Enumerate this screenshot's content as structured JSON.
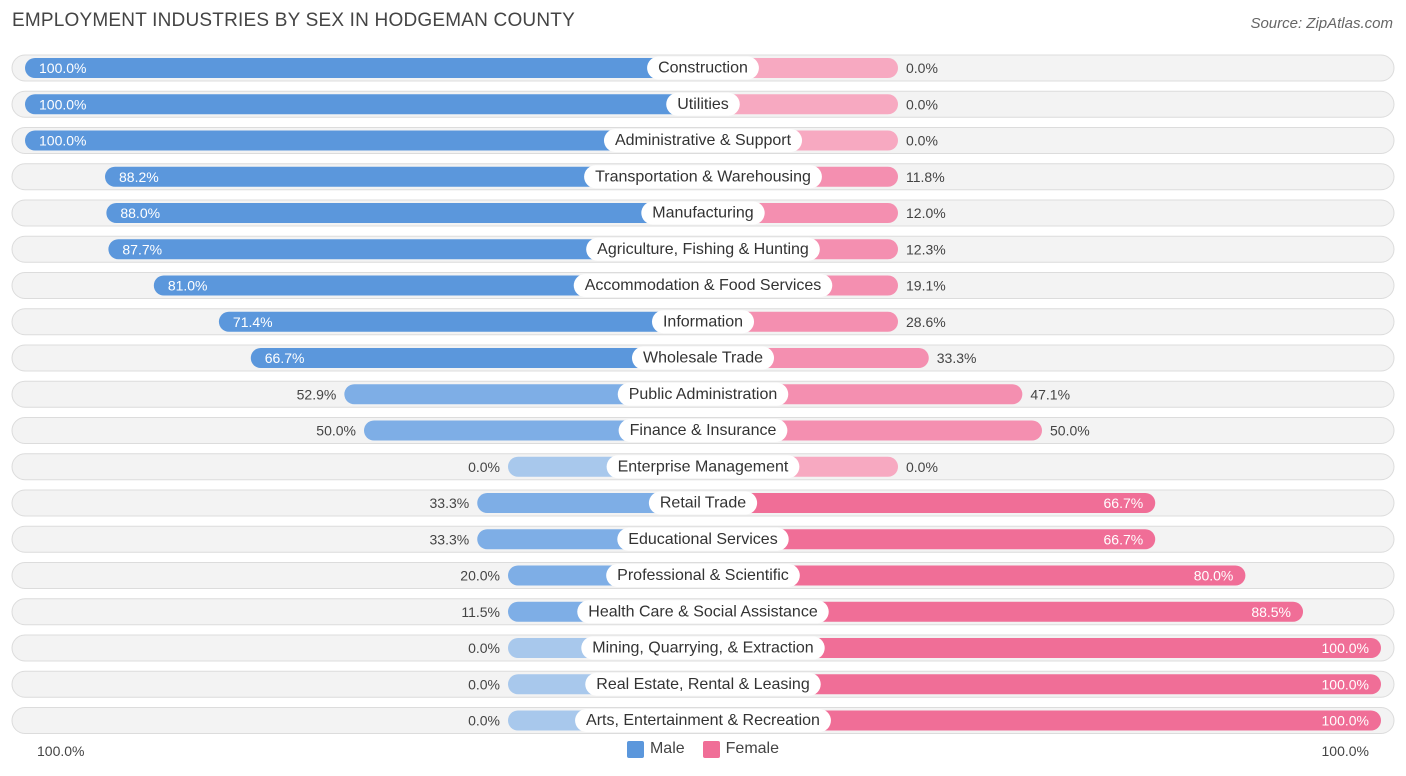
{
  "header": {
    "title": "EMPLOYMENT INDUSTRIES BY SEX IN HODGEMAN COUNTY",
    "source": "Source: ZipAtlas.com"
  },
  "colors": {
    "male": "#5b97dc",
    "male_light": "#a8c8ec",
    "female": "#f06e97",
    "female_light": "#f7a9c1",
    "row_bg": "#efefef",
    "row_border": "#dcdcdc"
  },
  "legend": {
    "male": "Male",
    "female": "Female"
  },
  "axis": {
    "left": "100.0%",
    "right": "100.0%"
  },
  "chart_data": {
    "type": "bar",
    "orientation": "horizontal-diverging",
    "title": "EMPLOYMENT INDUSTRIES BY SEX IN HODGEMAN COUNTY",
    "categories": [
      "Construction",
      "Utilities",
      "Administrative & Support",
      "Transportation & Warehousing",
      "Manufacturing",
      "Agriculture, Fishing & Hunting",
      "Accommodation & Food Services",
      "Information",
      "Wholesale Trade",
      "Public Administration",
      "Finance & Insurance",
      "Enterprise Management",
      "Retail Trade",
      "Educational Services",
      "Professional & Scientific",
      "Health Care & Social Assistance",
      "Mining, Quarrying, & Extraction",
      "Real Estate, Rental & Leasing",
      "Arts, Entertainment & Recreation"
    ],
    "series": [
      {
        "name": "Male",
        "values": [
          100.0,
          100.0,
          100.0,
          88.2,
          88.0,
          87.7,
          81.0,
          71.4,
          66.7,
          52.9,
          50.0,
          0.0,
          33.3,
          33.3,
          20.0,
          11.5,
          0.0,
          0.0,
          0.0
        ],
        "labels": [
          "100.0%",
          "100.0%",
          "100.0%",
          "88.2%",
          "88.0%",
          "87.7%",
          "81.0%",
          "71.4%",
          "66.7%",
          "52.9%",
          "50.0%",
          "0.0%",
          "33.3%",
          "33.3%",
          "20.0%",
          "11.5%",
          "0.0%",
          "0.0%",
          "0.0%"
        ]
      },
      {
        "name": "Female",
        "values": [
          0.0,
          0.0,
          0.0,
          11.8,
          12.0,
          12.3,
          19.1,
          28.6,
          33.3,
          47.1,
          50.0,
          0.0,
          66.7,
          66.7,
          80.0,
          88.5,
          100.0,
          100.0,
          100.0
        ],
        "labels": [
          "0.0%",
          "0.0%",
          "0.0%",
          "11.8%",
          "12.0%",
          "12.3%",
          "19.1%",
          "28.6%",
          "33.3%",
          "47.1%",
          "50.0%",
          "0.0%",
          "66.7%",
          "66.7%",
          "80.0%",
          "88.5%",
          "100.0%",
          "100.0%",
          "100.0%"
        ]
      }
    ],
    "xlim": [
      -100,
      100
    ],
    "xlabel_left": "100.0%",
    "xlabel_right": "100.0%",
    "legend_position": "bottom-center"
  }
}
